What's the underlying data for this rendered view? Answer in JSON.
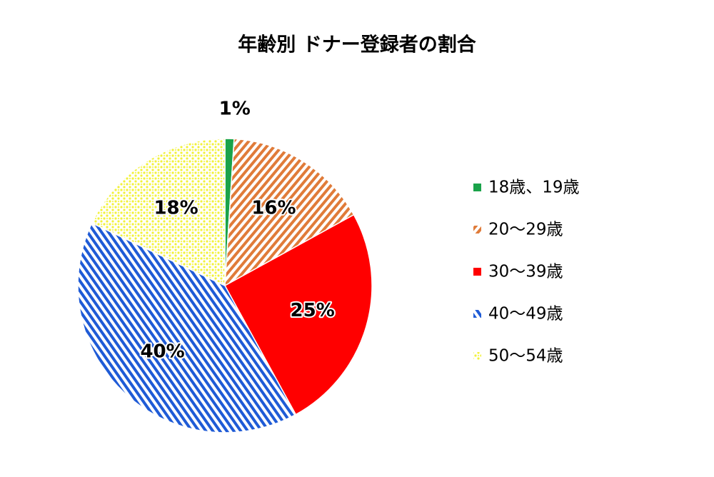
{
  "chart_data": {
    "type": "pie",
    "title": "年齢別 ドナー登録者の割合",
    "categories": [
      "18歳、19歳",
      "20～29歳",
      "30～39歳",
      "40～49歳",
      "50～54歳"
    ],
    "values": [
      1,
      16,
      25,
      40,
      18
    ],
    "value_labels": [
      "1%",
      "16%",
      "25%",
      "40%",
      "18%"
    ],
    "colors": [
      "#1aa34a",
      "#e07b39",
      "#ff0000",
      "#1f5bd6",
      "#f2f23a"
    ],
    "patterns": [
      "solid",
      "stripes",
      "solid",
      "stripes",
      "dots"
    ],
    "legend": "right"
  }
}
